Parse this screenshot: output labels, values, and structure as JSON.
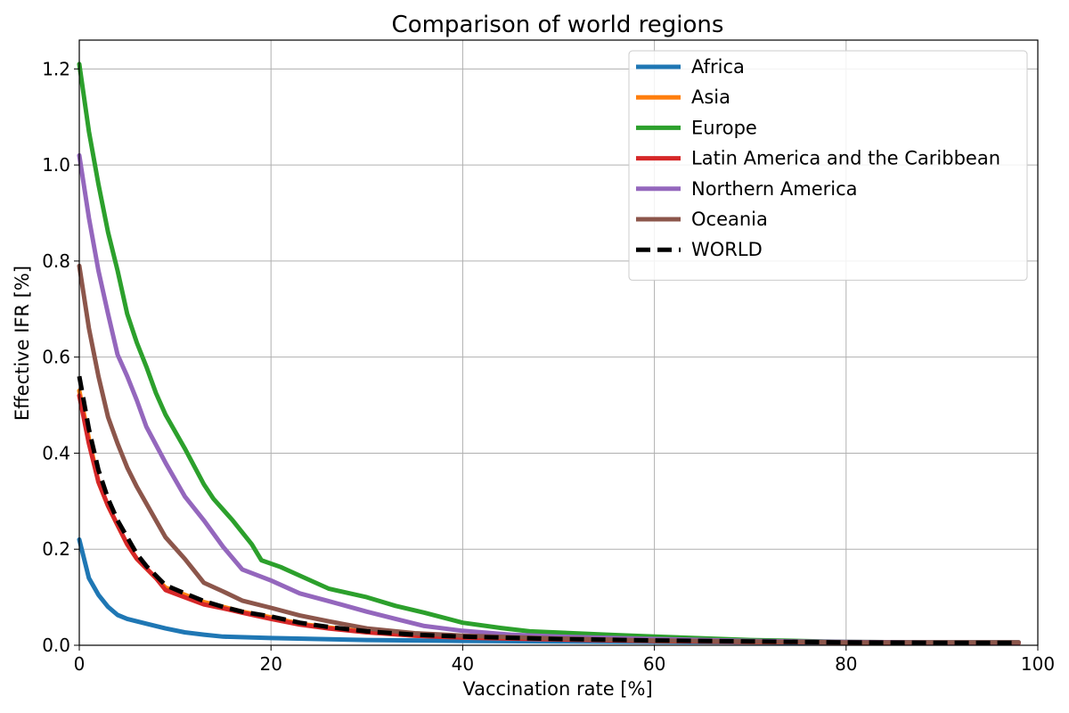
{
  "chart_data": {
    "type": "line",
    "title": "Comparison of world regions",
    "xlabel": "Vaccination rate [%]",
    "ylabel": "Effective IFR [%]",
    "xlim": [
      0,
      100
    ],
    "ylim": [
      0,
      1.26
    ],
    "x_ticks": [
      0,
      20,
      40,
      60,
      80,
      100
    ],
    "x_tick_labels": [
      "0",
      "20",
      "40",
      "60",
      "80",
      "100"
    ],
    "y_ticks": [
      0,
      0.2,
      0.4,
      0.6,
      0.8,
      1.0,
      1.2
    ],
    "y_tick_labels": [
      "0.0",
      "0.2",
      "0.4",
      "0.6",
      "0.8",
      "1.0",
      "1.2"
    ],
    "grid": true,
    "legend_position": "top-right",
    "series": [
      {
        "name": "Africa",
        "color": "#1f77b4",
        "dashed": false,
        "points": [
          [
            0,
            0.22
          ],
          [
            1,
            0.14
          ],
          [
            2,
            0.105
          ],
          [
            3,
            0.08
          ],
          [
            4,
            0.063
          ],
          [
            5,
            0.055
          ],
          [
            7,
            0.045
          ],
          [
            9,
            0.035
          ],
          [
            11,
            0.027
          ],
          [
            13,
            0.022
          ],
          [
            15,
            0.018
          ],
          [
            20,
            0.015
          ],
          [
            30,
            0.011
          ],
          [
            40,
            0.009
          ],
          [
            50,
            0.008
          ],
          [
            60,
            0.007
          ],
          [
            70,
            0.006
          ],
          [
            80,
            0.005
          ],
          [
            90,
            0.005
          ],
          [
            98,
            0.005
          ]
        ]
      },
      {
        "name": "Asia",
        "color": "#ff7f0e",
        "dashed": false,
        "points": [
          [
            0,
            0.53
          ],
          [
            1,
            0.43
          ],
          [
            2,
            0.34
          ],
          [
            3,
            0.29
          ],
          [
            4,
            0.25
          ],
          [
            5,
            0.21
          ],
          [
            6,
            0.18
          ],
          [
            7,
            0.16
          ],
          [
            8,
            0.14
          ],
          [
            9,
            0.12
          ],
          [
            11,
            0.105
          ],
          [
            13,
            0.09
          ],
          [
            15,
            0.08
          ],
          [
            17,
            0.07
          ],
          [
            20,
            0.058
          ],
          [
            23,
            0.045
          ],
          [
            26,
            0.037
          ],
          [
            30,
            0.028
          ],
          [
            35,
            0.02
          ],
          [
            40,
            0.017
          ],
          [
            50,
            0.013
          ],
          [
            60,
            0.009
          ],
          [
            70,
            0.007
          ],
          [
            80,
            0.006
          ],
          [
            90,
            0.005
          ],
          [
            98,
            0.005
          ]
        ]
      },
      {
        "name": "Europe",
        "color": "#2ca02c",
        "dashed": false,
        "points": [
          [
            0,
            1.21
          ],
          [
            1,
            1.07
          ],
          [
            2,
            0.96
          ],
          [
            3,
            0.86
          ],
          [
            4,
            0.78
          ],
          [
            5,
            0.69
          ],
          [
            6,
            0.63
          ],
          [
            7,
            0.58
          ],
          [
            8,
            0.525
          ],
          [
            9,
            0.48
          ],
          [
            11,
            0.41
          ],
          [
            13,
            0.335
          ],
          [
            14,
            0.305
          ],
          [
            16,
            0.26
          ],
          [
            18,
            0.21
          ],
          [
            19,
            0.177
          ],
          [
            21,
            0.163
          ],
          [
            23,
            0.145
          ],
          [
            26,
            0.118
          ],
          [
            30,
            0.1
          ],
          [
            33,
            0.082
          ],
          [
            36,
            0.068
          ],
          [
            40,
            0.047
          ],
          [
            44,
            0.036
          ],
          [
            47,
            0.029
          ],
          [
            55,
            0.022
          ],
          [
            60,
            0.018
          ],
          [
            70,
            0.011
          ],
          [
            80,
            0.007
          ],
          [
            90,
            0.006
          ],
          [
            98,
            0.006
          ]
        ]
      },
      {
        "name": "Latin America and the Caribbean",
        "color": "#d62728",
        "dashed": false,
        "points": [
          [
            0,
            0.52
          ],
          [
            1,
            0.42
          ],
          [
            2,
            0.34
          ],
          [
            3,
            0.29
          ],
          [
            4,
            0.25
          ],
          [
            5,
            0.21
          ],
          [
            6,
            0.18
          ],
          [
            7,
            0.16
          ],
          [
            8,
            0.14
          ],
          [
            9,
            0.115
          ],
          [
            11,
            0.1
          ],
          [
            13,
            0.085
          ],
          [
            15,
            0.077
          ],
          [
            17,
            0.068
          ],
          [
            20,
            0.055
          ],
          [
            23,
            0.043
          ],
          [
            26,
            0.035
          ],
          [
            30,
            0.027
          ],
          [
            35,
            0.02
          ],
          [
            40,
            0.016
          ],
          [
            50,
            0.012
          ],
          [
            60,
            0.009
          ],
          [
            70,
            0.007
          ],
          [
            80,
            0.006
          ],
          [
            90,
            0.005
          ],
          [
            98,
            0.005
          ]
        ]
      },
      {
        "name": "Northern America",
        "color": "#9467bd",
        "dashed": false,
        "points": [
          [
            0,
            1.02
          ],
          [
            1,
            0.89
          ],
          [
            2,
            0.78
          ],
          [
            3,
            0.69
          ],
          [
            4,
            0.605
          ],
          [
            5,
            0.56
          ],
          [
            6,
            0.51
          ],
          [
            7,
            0.455
          ],
          [
            9,
            0.38
          ],
          [
            11,
            0.31
          ],
          [
            13,
            0.26
          ],
          [
            15,
            0.205
          ],
          [
            17,
            0.158
          ],
          [
            20,
            0.135
          ],
          [
            23,
            0.108
          ],
          [
            26,
            0.092
          ],
          [
            30,
            0.07
          ],
          [
            33,
            0.055
          ],
          [
            36,
            0.04
          ],
          [
            40,
            0.03
          ],
          [
            45,
            0.022
          ],
          [
            50,
            0.018
          ],
          [
            60,
            0.013
          ],
          [
            70,
            0.009
          ],
          [
            80,
            0.007
          ],
          [
            90,
            0.006
          ],
          [
            98,
            0.006
          ]
        ]
      },
      {
        "name": "Oceania",
        "color": "#8c564b",
        "dashed": false,
        "points": [
          [
            0,
            0.79
          ],
          [
            1,
            0.66
          ],
          [
            2,
            0.56
          ],
          [
            3,
            0.475
          ],
          [
            4,
            0.42
          ],
          [
            5,
            0.37
          ],
          [
            6,
            0.33
          ],
          [
            7,
            0.295
          ],
          [
            9,
            0.225
          ],
          [
            11,
            0.18
          ],
          [
            13,
            0.13
          ],
          [
            15,
            0.112
          ],
          [
            17,
            0.093
          ],
          [
            20,
            0.078
          ],
          [
            23,
            0.062
          ],
          [
            26,
            0.05
          ],
          [
            30,
            0.035
          ],
          [
            35,
            0.025
          ],
          [
            40,
            0.02
          ],
          [
            50,
            0.014
          ],
          [
            60,
            0.01
          ],
          [
            70,
            0.008
          ],
          [
            80,
            0.006
          ],
          [
            90,
            0.006
          ],
          [
            98,
            0.006
          ]
        ]
      },
      {
        "name": "WORLD",
        "color": "#000000",
        "dashed": true,
        "points": [
          [
            0,
            0.56
          ],
          [
            1,
            0.45
          ],
          [
            2,
            0.365
          ],
          [
            3,
            0.305
          ],
          [
            4,
            0.26
          ],
          [
            5,
            0.225
          ],
          [
            6,
            0.19
          ],
          [
            7,
            0.165
          ],
          [
            8,
            0.145
          ],
          [
            9,
            0.125
          ],
          [
            11,
            0.108
          ],
          [
            13,
            0.092
          ],
          [
            15,
            0.08
          ],
          [
            17,
            0.07
          ],
          [
            20,
            0.06
          ],
          [
            23,
            0.047
          ],
          [
            26,
            0.038
          ],
          [
            30,
            0.029
          ],
          [
            35,
            0.022
          ],
          [
            40,
            0.018
          ],
          [
            50,
            0.013
          ],
          [
            60,
            0.01
          ],
          [
            70,
            0.008
          ],
          [
            80,
            0.006
          ],
          [
            90,
            0.005
          ],
          [
            98,
            0.005
          ]
        ]
      }
    ]
  }
}
